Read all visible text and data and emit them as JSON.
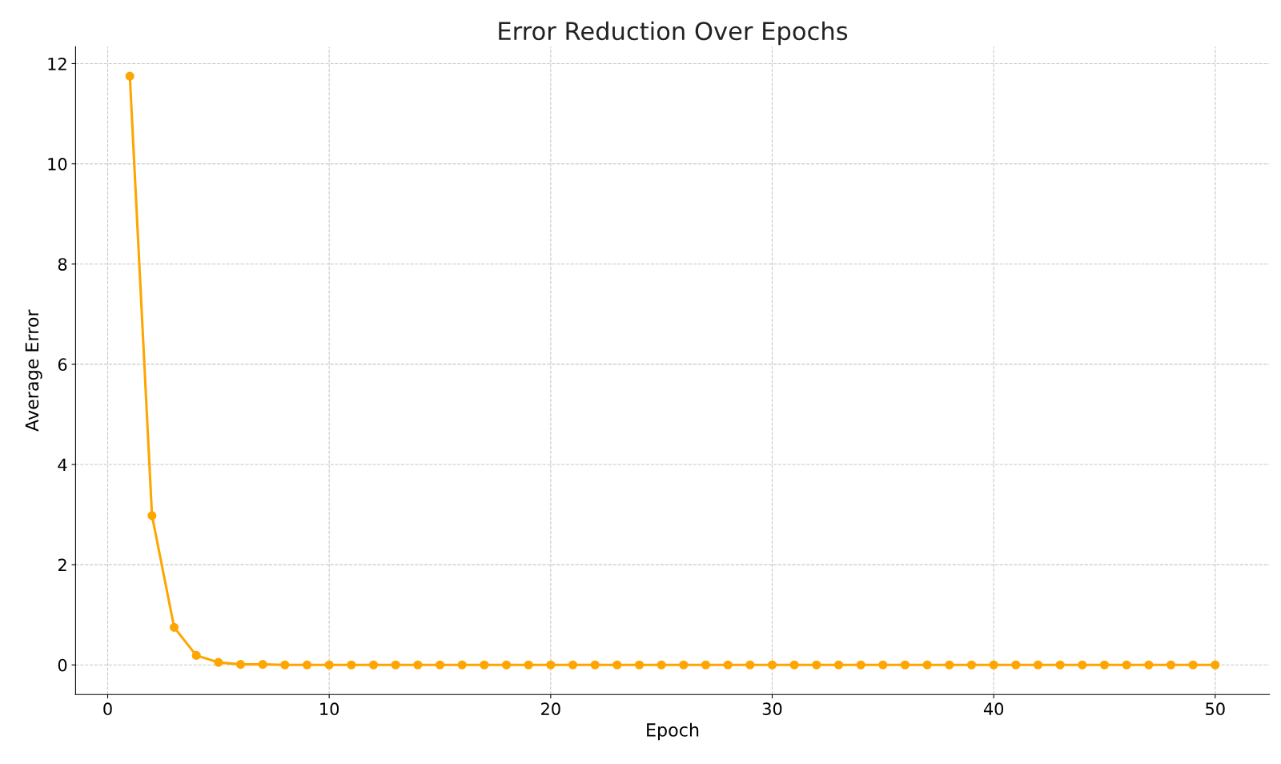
{
  "chart_data": {
    "type": "line",
    "title": "Error Reduction Over Epochs",
    "xlabel": "Epoch",
    "ylabel": "Average Error",
    "x": [
      1,
      2,
      3,
      4,
      5,
      6,
      7,
      8,
      9,
      10,
      11,
      12,
      13,
      14,
      15,
      16,
      17,
      18,
      19,
      20,
      21,
      22,
      23,
      24,
      25,
      26,
      27,
      28,
      29,
      30,
      31,
      32,
      33,
      34,
      35,
      36,
      37,
      38,
      39,
      40,
      41,
      42,
      43,
      44,
      45,
      46,
      47,
      48,
      49,
      50
    ],
    "series": [
      {
        "color": "#ffa500",
        "values": [
          11.75,
          2.98,
          0.75,
          0.19,
          0.05,
          0.01,
          0.01,
          0,
          0,
          0,
          0,
          0,
          0,
          0,
          0,
          0,
          0,
          0,
          0,
          0,
          0,
          0,
          0,
          0,
          0,
          0,
          0,
          0,
          0,
          0,
          0,
          0,
          0,
          0,
          0,
          0,
          0,
          0,
          0,
          0,
          0,
          0,
          0,
          0,
          0,
          0,
          0,
          0,
          0,
          0
        ]
      }
    ],
    "xlim": [
      -1.45,
      52.45
    ],
    "ylim": [
      -0.59,
      12.34
    ],
    "xticks": [
      0,
      10,
      20,
      30,
      40,
      50
    ],
    "yticks": [
      0,
      2,
      4,
      6,
      8,
      10,
      12
    ],
    "grid": true,
    "legend": false,
    "marker": "circle",
    "line_style": "solid"
  }
}
